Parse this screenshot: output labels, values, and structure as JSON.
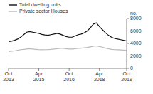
{
  "chart_data": {
    "type": "line",
    "ylabel": "no.",
    "categories": [
      "Oct\n2013",
      null,
      null,
      null,
      null,
      null,
      null,
      null,
      null,
      null,
      "Apr\n2015",
      null,
      null,
      null,
      null,
      null,
      null,
      null,
      null,
      null,
      "Oct\n2016",
      null,
      null,
      null,
      null,
      null,
      null,
      null,
      null,
      null,
      "Apr\n2018",
      null,
      null,
      null,
      null,
      null,
      null,
      null,
      null,
      "Oct\n2019"
    ],
    "series": [
      {
        "name": "Total dwelling units",
        "color": "#111111",
        "values": [
          4300,
          4350,
          4500,
          4700,
          5000,
          5400,
          5800,
          5900,
          5800,
          5700,
          5600,
          5450,
          5350,
          5300,
          5400,
          5500,
          5600,
          5500,
          5300,
          5100,
          5000,
          5000,
          5200,
          5400,
          5500,
          5700,
          6000,
          6500,
          7100,
          7300,
          6700,
          6200,
          5700,
          5300,
          5000,
          4800,
          4700,
          4600,
          4500,
          4400
        ]
      },
      {
        "name": "Private sector Houses",
        "color": "#bbbbbb",
        "values": [
          2700,
          2750,
          2800,
          2900,
          3000,
          3050,
          3100,
          3150,
          3100,
          3050,
          3000,
          2980,
          3000,
          3020,
          3050,
          3100,
          3150,
          3200,
          3200,
          3150,
          3100,
          3100,
          3150,
          3200,
          3250,
          3300,
          3350,
          3450,
          3550,
          3600,
          3500,
          3400,
          3250,
          3150,
          3050,
          3000,
          2980,
          2960,
          2940,
          2900
        ]
      }
    ],
    "ylim": [
      0,
      8000
    ],
    "yticks": [
      0,
      2000,
      4000,
      6000,
      8000
    ],
    "legend": "upper left"
  }
}
